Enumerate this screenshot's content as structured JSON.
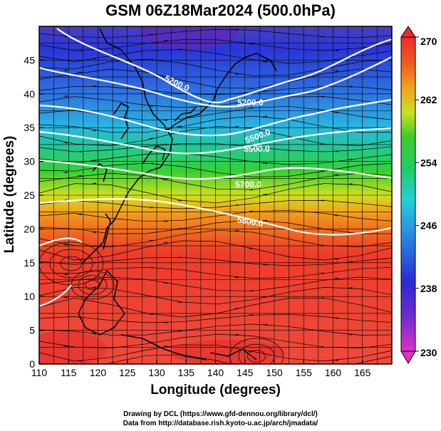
{
  "title": "GSM 06Z18Mar2024 (500.0hPa)",
  "xlabel": "Longitude (degrees)",
  "ylabel": "Latitude  (degrees)",
  "credits": [
    "Drawing by DCL (https://www.gfd-dennou.org/library/dcl/)",
    "Data from http://database.rish.kyoto-u.ac.jp/arch/jmadata/"
  ],
  "map_data": {
    "type": "map",
    "region": "Northwest Pacific",
    "xlim": [
      110,
      170
    ],
    "ylim": [
      0,
      50
    ],
    "x_ticks": [
      110,
      115,
      120,
      125,
      130,
      135,
      140,
      145,
      150,
      155,
      160,
      165
    ],
    "y_ticks": [
      0,
      5,
      10,
      15,
      20,
      25,
      30,
      35,
      40,
      45
    ],
    "grid": true,
    "filled_field": "temperature",
    "colorbar": {
      "min": 230,
      "max": 270,
      "tick_labels": [
        "230",
        "238",
        "246",
        "254",
        "262",
        "270"
      ]
    },
    "contour_labels": [
      "5200.0",
      "5200.0",
      "5500.0",
      "5500.0",
      "5700.0",
      "5800.0"
    ],
    "overlays": [
      "geopotential height contours",
      "wind streamlines",
      "coastlines"
    ]
  },
  "colors": {
    "cold": "#2a2ad6",
    "cool": "#29c8df",
    "mid": "#33cc33",
    "warm": "#f0a020",
    "hot": "#ee4a3c",
    "contour": "#ffffff",
    "coast": "#000000"
  }
}
